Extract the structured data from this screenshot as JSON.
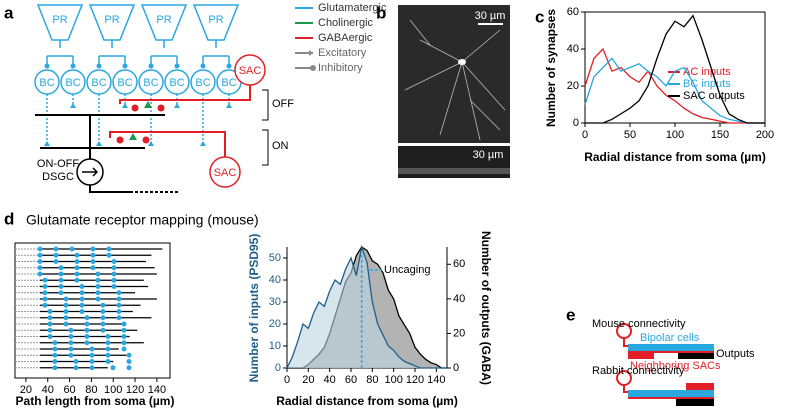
{
  "panels": {
    "letters": [
      "a",
      "b",
      "c",
      "d",
      "e"
    ],
    "a": {
      "photoreceptors": [
        "PR",
        "PR",
        "PR",
        "PR"
      ],
      "bipolar": [
        "BC",
        "BC",
        "BC",
        "BC",
        "BC",
        "BC",
        "BC",
        "BC"
      ],
      "sac": [
        "SAC",
        "SAC"
      ],
      "layers": [
        "OFF",
        "ON"
      ],
      "dsgc": [
        "ON-OFF",
        "DSGC"
      ],
      "legend": [
        "Glutamatergic",
        "Cholinergic",
        "GABAergic",
        "Excitatory",
        "Inhibitory"
      ],
      "legend_colors": [
        "#29a8df",
        "#1a9a4a",
        "#e21f26",
        "#888888",
        "#888888"
      ]
    },
    "b": {
      "scale": [
        "30 µm",
        "30 µm"
      ]
    },
    "d": {
      "title": "Glutamate receptor mapping (mouse)"
    },
    "e": {
      "mouse": "Mouse connectivity",
      "bipolar": "Bipolar cells",
      "outputs": "Outputs",
      "neighbors": "Neighboring SACs",
      "rabbit": "Rabbit connectivity"
    }
  },
  "chart_data": [
    {
      "type": "line",
      "xlabel": "Radial distance from soma (µm)",
      "ylabel": "Number of synapses",
      "x": [
        0,
        10,
        20,
        30,
        40,
        50,
        60,
        70,
        80,
        90,
        100,
        110,
        120,
        130,
        140,
        150,
        160,
        170,
        180,
        190,
        200
      ],
      "series": [
        {
          "name": "AC inputs",
          "color": "#e21f26",
          "values": [
            20,
            35,
            40,
            28,
            30,
            25,
            22,
            28,
            20,
            15,
            12,
            8,
            5,
            3,
            2,
            1,
            0,
            0,
            0,
            0,
            0
          ]
        },
        {
          "name": "BC inputs",
          "color": "#29a8df",
          "values": [
            10,
            25,
            30,
            35,
            28,
            30,
            32,
            28,
            25,
            20,
            28,
            30,
            22,
            12,
            8,
            4,
            2,
            1,
            0,
            0,
            0
          ]
        },
        {
          "name": "SAC outputs",
          "color": "#000000",
          "values": [
            0,
            0,
            0,
            2,
            5,
            8,
            12,
            20,
            35,
            48,
            55,
            52,
            58,
            45,
            30,
            15,
            5,
            2,
            0,
            0,
            0
          ]
        }
      ],
      "xlim": [
        0,
        200
      ],
      "xticks": [
        0,
        50,
        100,
        150,
        200
      ],
      "ylim": [
        0,
        60
      ],
      "yticks": [
        0,
        20,
        40,
        60
      ]
    },
    {
      "type": "bar",
      "xlabel": "Path length from soma (µm)",
      "color": "#000000",
      "values": [
        145,
        135,
        130,
        138,
        140,
        128,
        132,
        120,
        140,
        125,
        118,
        135,
        110,
        122,
        115,
        128,
        105,
        112,
        100,
        95
      ],
      "xlim": [
        10,
        152
      ],
      "xticks": [
        20,
        40,
        60,
        80,
        100,
        120,
        140
      ]
    },
    {
      "type": "area",
      "xlabel": "Radial distance from soma (µm)",
      "ylabel": "Number of inputs (PSD95)",
      "y2label": "Number of outputs (GABA)",
      "annotation": "Uncaging",
      "annotation_x": 70,
      "x": [
        0,
        5,
        10,
        15,
        20,
        25,
        30,
        35,
        40,
        45,
        50,
        55,
        60,
        65,
        70,
        75,
        80,
        85,
        90,
        95,
        100,
        105,
        110,
        115,
        120,
        125,
        130,
        135,
        140,
        145,
        150
      ],
      "series": [
        {
          "name": "inputs",
          "color": "#1d5f8a",
          "values": [
            0,
            5,
            12,
            20,
            18,
            25,
            30,
            28,
            35,
            40,
            38,
            45,
            50,
            42,
            55,
            48,
            30,
            20,
            15,
            10,
            8,
            5,
            3,
            2,
            1,
            0,
            0,
            0,
            0,
            0,
            0
          ]
        },
        {
          "name": "outputs",
          "color": "#808080",
          "axis": "y2",
          "values": [
            0,
            0,
            0,
            0,
            2,
            5,
            8,
            12,
            20,
            30,
            40,
            50,
            55,
            65,
            70,
            68,
            62,
            60,
            55,
            45,
            40,
            30,
            25,
            20,
            12,
            8,
            5,
            3,
            2,
            0,
            0
          ]
        }
      ],
      "xlim": [
        0,
        150
      ],
      "xticks": [
        0,
        20,
        40,
        60,
        80,
        100,
        120,
        140
      ],
      "ylim": [
        0,
        55
      ],
      "yticks": [
        0,
        10,
        20,
        30,
        40,
        50
      ],
      "y2lim": [
        0,
        70
      ],
      "y2ticks": [
        0,
        20,
        40,
        60
      ]
    }
  ]
}
